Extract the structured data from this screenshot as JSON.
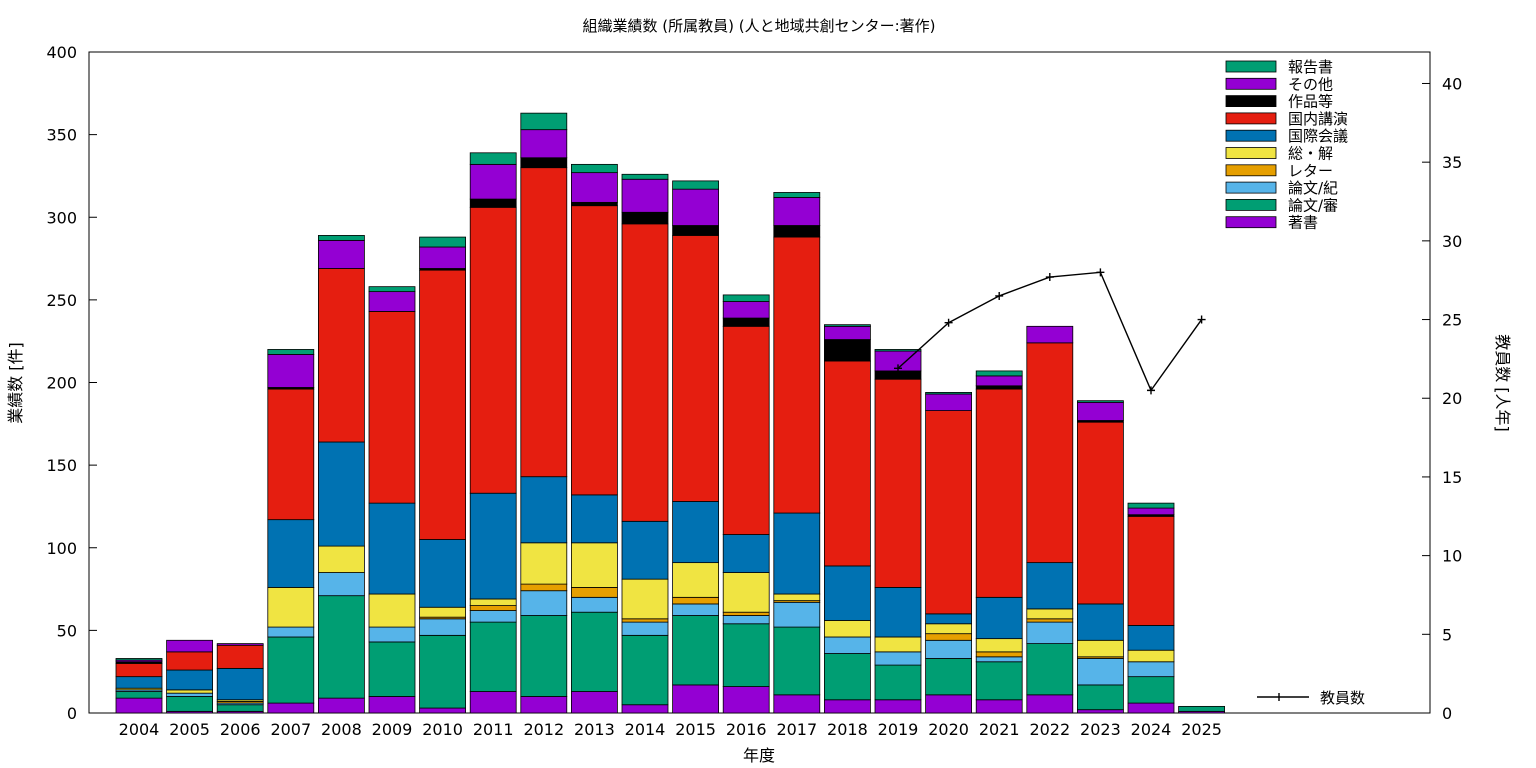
{
  "chart_data": {
    "type": "bar",
    "stacked": true,
    "title": "組織業績数 (所属教員) (人と地域共創センター:著作)",
    "xlabel": "年度",
    "ylabel": "業績数 [件]",
    "y2label": "教員数 [人年]",
    "ylim": [
      0,
      400
    ],
    "y2lim": [
      0,
      42
    ],
    "yticks": [
      0,
      50,
      100,
      150,
      200,
      250,
      300,
      350,
      400
    ],
    "y2ticks": [
      0,
      5,
      10,
      15,
      20,
      25,
      30,
      35,
      40
    ],
    "legend_position": "top-right",
    "categories": [
      "2004",
      "2005",
      "2006",
      "2007",
      "2008",
      "2009",
      "2010",
      "2011",
      "2012",
      "2013",
      "2014",
      "2015",
      "2016",
      "2017",
      "2018",
      "2019",
      "2020",
      "2021",
      "2022",
      "2023",
      "2024",
      "2025"
    ],
    "series": [
      {
        "name": "著書",
        "color": "#9400d3",
        "values": [
          9,
          1,
          1,
          6,
          9,
          10,
          3,
          13,
          10,
          13,
          5,
          17,
          16,
          11,
          8,
          8,
          11,
          8,
          11,
          2,
          6,
          1
        ]
      },
      {
        "name": "論文/審",
        "color": "#009e73",
        "values": [
          4,
          9,
          4,
          40,
          62,
          33,
          44,
          42,
          49,
          48,
          42,
          42,
          38,
          41,
          28,
          21,
          22,
          23,
          31,
          15,
          16,
          3
        ]
      },
      {
        "name": "論文/紀",
        "color": "#56b4e9",
        "values": [
          1,
          2,
          1,
          6,
          14,
          9,
          10,
          7,
          15,
          9,
          8,
          7,
          5,
          15,
          10,
          8,
          11,
          3,
          13,
          16,
          9,
          0
        ]
      },
      {
        "name": "レター",
        "color": "#e69f00",
        "values": [
          0,
          0,
          1,
          0,
          0,
          0,
          1,
          3,
          4,
          6,
          2,
          4,
          2,
          1,
          0,
          0,
          4,
          3,
          2,
          1,
          0,
          0
        ]
      },
      {
        "name": "総・解",
        "color": "#f0e442",
        "values": [
          1,
          2,
          1,
          24,
          16,
          20,
          6,
          4,
          25,
          27,
          24,
          21,
          24,
          4,
          10,
          9,
          6,
          8,
          6,
          10,
          7,
          0
        ]
      },
      {
        "name": "国際会議",
        "color": "#0072b2",
        "values": [
          7,
          12,
          19,
          41,
          63,
          55,
          41,
          64,
          40,
          29,
          35,
          37,
          23,
          49,
          33,
          30,
          6,
          25,
          28,
          22,
          15,
          0
        ]
      },
      {
        "name": "国内講演",
        "color": "#e51e10",
        "values": [
          8,
          11,
          14,
          79,
          105,
          116,
          163,
          173,
          187,
          175,
          180,
          161,
          126,
          167,
          124,
          126,
          123,
          126,
          133,
          110,
          66,
          0
        ]
      },
      {
        "name": "作品等",
        "color": "#000000",
        "values": [
          1,
          0,
          0,
          1,
          0,
          0,
          1,
          5,
          6,
          2,
          7,
          6,
          5,
          7,
          13,
          5,
          0,
          2,
          0,
          1,
          1,
          0
        ]
      },
      {
        "name": "その他",
        "color": "#9400d3",
        "values": [
          1,
          7,
          1,
          20,
          17,
          12,
          13,
          21,
          17,
          18,
          20,
          22,
          10,
          17,
          8,
          12,
          10,
          6,
          10,
          11,
          4,
          0
        ]
      },
      {
        "name": "報告書",
        "color": "#009e73",
        "values": [
          1,
          0,
          0,
          3,
          3,
          3,
          6,
          7,
          10,
          5,
          3,
          5,
          4,
          3,
          1,
          1,
          1,
          3,
          0,
          1,
          3,
          0
        ]
      }
    ],
    "line_series": {
      "name": "教員数",
      "axis": "y2",
      "color": "#000000",
      "x": [
        "2019",
        "2020",
        "2021",
        "2022",
        "2023",
        "2024",
        "2025"
      ],
      "values": [
        21.9,
        24.8,
        26.5,
        27.7,
        28.0,
        20.5,
        25.0
      ]
    }
  }
}
